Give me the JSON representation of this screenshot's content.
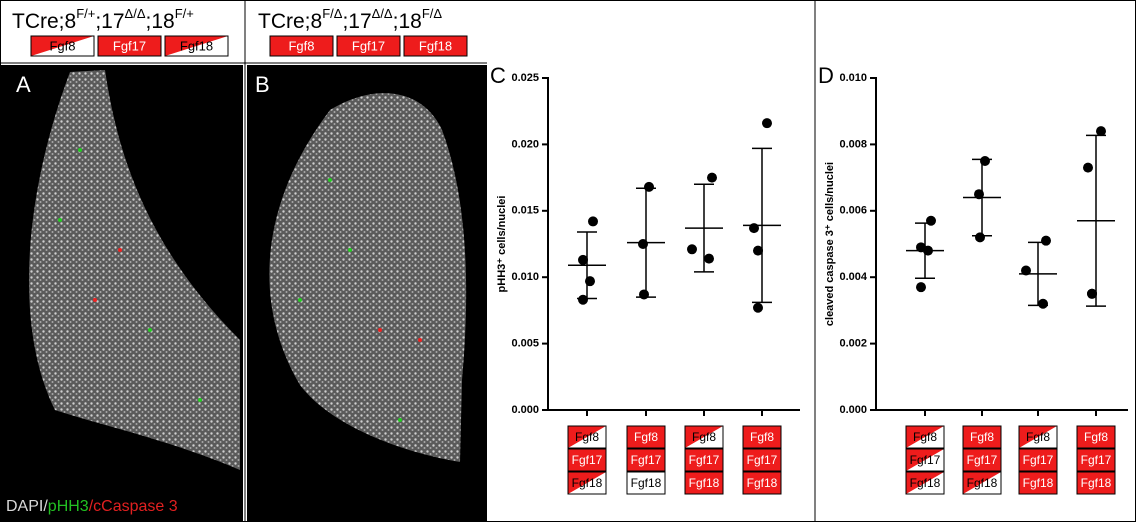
{
  "header_A": {
    "parts": [
      {
        "text": "TCre;8"
      },
      {
        "sup": "F/+"
      },
      {
        "text": ";17"
      },
      {
        "sup": "Δ/Δ"
      },
      {
        "text": ";18"
      },
      {
        "sup": "F/+"
      }
    ],
    "genes": [
      {
        "label": "Fgf8",
        "fill": "half"
      },
      {
        "label": "Fgf17",
        "fill": "full"
      },
      {
        "label": "Fgf18",
        "fill": "half"
      }
    ]
  },
  "header_B": {
    "parts": [
      {
        "text": "TCre;8"
      },
      {
        "sup": "F/Δ"
      },
      {
        "text": ";17"
      },
      {
        "sup": "Δ/Δ"
      },
      {
        "text": ";18"
      },
      {
        "sup": "F/Δ"
      }
    ],
    "genes": [
      {
        "label": "Fgf8",
        "fill": "full"
      },
      {
        "label": "Fgf17",
        "fill": "full"
      },
      {
        "label": "Fgf18",
        "fill": "full"
      }
    ]
  },
  "panel_A": "A",
  "panel_B": "B",
  "stain_legend": [
    {
      "text": "DAPI/",
      "color": "#d8d8d8"
    },
    {
      "text": "pHH3",
      "color": "#22c022"
    },
    {
      "text": "/cCaspase 3",
      "color": "#e02020"
    }
  ],
  "chart_data": [
    {
      "type": "scatter",
      "panel": "C",
      "y_label": "pHH3⁺ cells/nuclei",
      "ylim": [
        0,
        0.025
      ],
      "yticks": [
        {
          "value": 0,
          "label": "0.000"
        },
        0.005,
        {
          "value": 0.01,
          "label": "0.010"
        },
        0.015,
        {
          "value": 0.02,
          "label": "0.020"
        },
        0.025
      ],
      "color": "#000000",
      "groups": [
        {
          "genes": [
            {
              "label": "Fgf8",
              "fill": "half"
            },
            {
              "label": "Fgf17",
              "fill": "full"
            },
            {
              "label": "Fgf18",
              "fill": "half"
            }
          ],
          "values": [
            0.0142,
            0.0113,
            0.0097,
            0.0083
          ],
          "mean": 0.0109,
          "sd": 0.0025
        },
        {
          "genes": [
            {
              "label": "Fgf8",
              "fill": "full"
            },
            {
              "label": "Fgf17",
              "fill": "full"
            },
            {
              "label": "Fgf18",
              "fill": "white"
            }
          ],
          "values": [
            0.0168,
            0.0125,
            0.0087
          ],
          "mean": 0.0126,
          "sd": 0.0041
        },
        {
          "genes": [
            {
              "label": "Fgf8",
              "fill": "half"
            },
            {
              "label": "Fgf17",
              "fill": "full"
            },
            {
              "label": "Fgf18",
              "fill": "full"
            }
          ],
          "values": [
            0.0175,
            0.0121,
            0.0114
          ],
          "mean": 0.0137,
          "sd": 0.0033
        },
        {
          "genes": [
            {
              "label": "Fgf8",
              "fill": "full"
            },
            {
              "label": "Fgf17",
              "fill": "full"
            },
            {
              "label": "Fgf18",
              "fill": "full"
            }
          ],
          "values": [
            0.0216,
            0.0137,
            0.012,
            0.0077
          ],
          "mean": 0.0139,
          "sd": 0.0058
        }
      ]
    },
    {
      "type": "scatter",
      "panel": "D",
      "y_label": "cleaved caspase 3⁺ cells/nuclei",
      "ylim": [
        0,
        0.01
      ],
      "yticks": [
        {
          "value": 0,
          "label": "0.000"
        },
        0.002,
        0.004,
        0.006,
        0.008,
        {
          "value": 0.01,
          "label": "0.010"
        }
      ],
      "color": "#000000",
      "groups": [
        {
          "genes": [
            {
              "label": "Fgf8",
              "fill": "half"
            },
            {
              "label": "Fgf17",
              "fill": "half"
            },
            {
              "label": "Fgf18",
              "fill": "half"
            }
          ],
          "values": [
            0.0057,
            0.0049,
            0.0048,
            0.0037
          ],
          "mean": 0.0048,
          "sd": 0.00083
        },
        {
          "genes": [
            {
              "label": "Fgf8",
              "fill": "full"
            },
            {
              "label": "Fgf17",
              "fill": "full"
            },
            {
              "label": "Fgf18",
              "fill": "half"
            }
          ],
          "values": [
            0.0075,
            0.0065,
            0.0052
          ],
          "mean": 0.0064,
          "sd": 0.00115
        },
        {
          "genes": [
            {
              "label": "Fgf8",
              "fill": "half"
            },
            {
              "label": "Fgf17",
              "fill": "full"
            },
            {
              "label": "Fgf18",
              "fill": "full"
            }
          ],
          "values": [
            0.0051,
            0.0042,
            0.0032
          ],
          "mean": 0.0041,
          "sd": 0.00095
        },
        {
          "genes": [
            {
              "label": "Fgf8",
              "fill": "full"
            },
            {
              "label": "Fgf17",
              "fill": "full"
            },
            {
              "label": "Fgf18",
              "fill": "full"
            }
          ],
          "values": [
            0.0084,
            0.0073,
            0.0035,
            0.0035
          ],
          "mean": 0.0057,
          "sd": 0.00257
        }
      ]
    }
  ]
}
